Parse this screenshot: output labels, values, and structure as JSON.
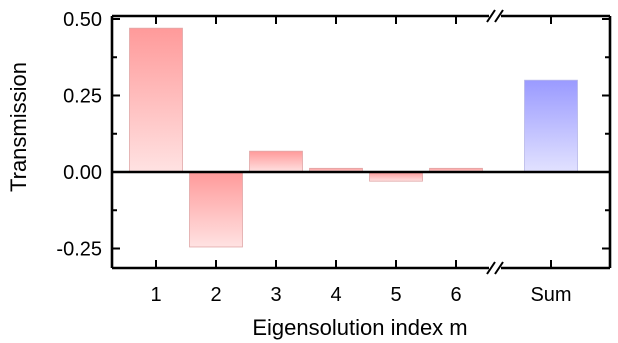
{
  "chart_data": {
    "type": "bar",
    "title": "",
    "xlabel": "Eigensolution index m",
    "ylabel": "Transmission",
    "ylim": [
      -0.32,
      0.51
    ],
    "yticks": [
      0.5,
      0.25,
      0.0,
      -0.25
    ],
    "ytick_labels": [
      "0.50",
      "0.25",
      "0.00",
      "-0.25"
    ],
    "grid": false,
    "axis_break": "between 6 and Sum",
    "categories": [
      "1",
      "2",
      "3",
      "4",
      "5",
      "6",
      "Sum"
    ],
    "values": [
      0.47,
      -0.245,
      0.068,
      0.012,
      -0.03,
      0.012,
      0.3
    ],
    "bar_colors": [
      "#ff9a9a",
      "#ff9a9a",
      "#ff9a9a",
      "#ff9a9a",
      "#ff9a9a",
      "#ff9a9a",
      "#9a9aff"
    ],
    "bar_colors_light": [
      "#ffe2e2",
      "#ffe2e2",
      "#ffe2e2",
      "#ffe2e2",
      "#ffe2e2",
      "#ffe2e2",
      "#e2e2ff"
    ]
  }
}
